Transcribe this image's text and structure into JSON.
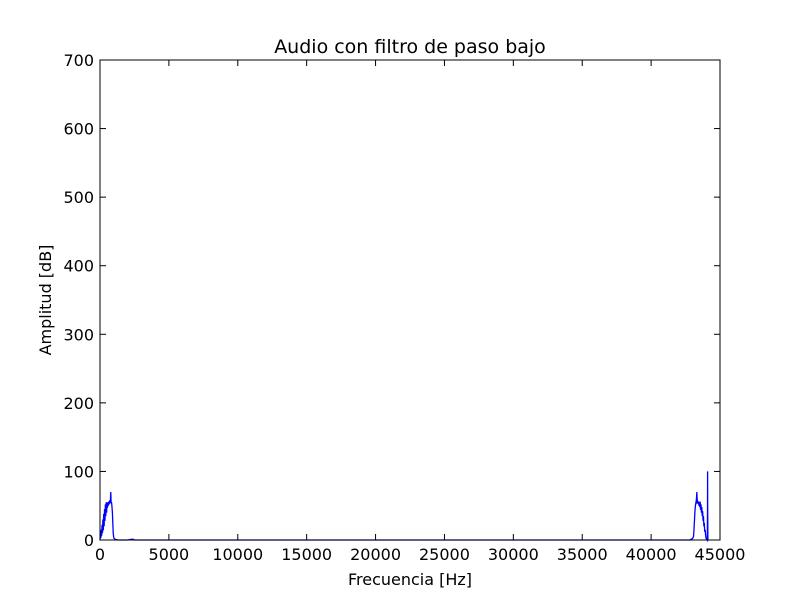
{
  "chart_data": {
    "type": "line",
    "title": "Audio con filtro de paso bajo",
    "xlabel": "Frecuencia [Hz]",
    "ylabel": "Amplitud [dB]",
    "xlim": [
      0,
      45000
    ],
    "ylim": [
      0,
      700
    ],
    "x_ticks": [
      0,
      5000,
      10000,
      15000,
      20000,
      25000,
      30000,
      35000,
      40000,
      45000
    ],
    "x_tick_labels": [
      "0",
      "5000",
      "10000",
      "15000",
      "20000",
      "25000",
      "30000",
      "35000",
      "40000",
      "45000"
    ],
    "y_ticks": [
      0,
      100,
      200,
      300,
      400,
      500,
      600,
      700
    ],
    "y_tick_labels": [
      "0",
      "100",
      "200",
      "300",
      "400",
      "500",
      "600",
      "700"
    ],
    "grid": false,
    "legend": "none",
    "series": [
      {
        "color": "#0000ff",
        "x": [
          0,
          30,
          60,
          90,
          120,
          150,
          180,
          210,
          240,
          270,
          300,
          330,
          360,
          390,
          420,
          450,
          480,
          510,
          540,
          570,
          600,
          630,
          660,
          690,
          720,
          750,
          780,
          810,
          840,
          870,
          900,
          930,
          960,
          1000,
          1100,
          1300,
          1600,
          2000,
          2300,
          2400,
          2500,
          3000,
          10000,
          20000,
          30000,
          40000,
          42500,
          42800,
          43000,
          43080,
          43110,
          43140,
          43170,
          43200,
          43230,
          43260,
          43290,
          43320,
          43350,
          43380,
          43410,
          43440,
          43470,
          43500,
          43530,
          43560,
          43590,
          43620,
          43650,
          43680,
          43710,
          43740,
          43770,
          43800,
          43830,
          43860,
          43890,
          43920,
          43960,
          44000,
          44050,
          44080,
          44095,
          44100,
          44105,
          44120,
          44150,
          44200
        ],
        "y": [
          0,
          8,
          3,
          15,
          6,
          22,
          10,
          30,
          14,
          38,
          20,
          45,
          28,
          52,
          35,
          55,
          40,
          55,
          47,
          55,
          50,
          56,
          52,
          55,
          58,
          54,
          70,
          53,
          55,
          48,
          40,
          25,
          10,
          3,
          1,
          0,
          0,
          0,
          1,
          1,
          0,
          0,
          0,
          0,
          0,
          0,
          0,
          0,
          2,
          5,
          15,
          26,
          38,
          47,
          52,
          55,
          60,
          70,
          55,
          56,
          53,
          56,
          50,
          55,
          48,
          56,
          44,
          52,
          40,
          48,
          35,
          42,
          28,
          35,
          20,
          25,
          12,
          15,
          6,
          2,
          1,
          0,
          50,
          100,
          50,
          1,
          0,
          0
        ]
      }
    ]
  }
}
